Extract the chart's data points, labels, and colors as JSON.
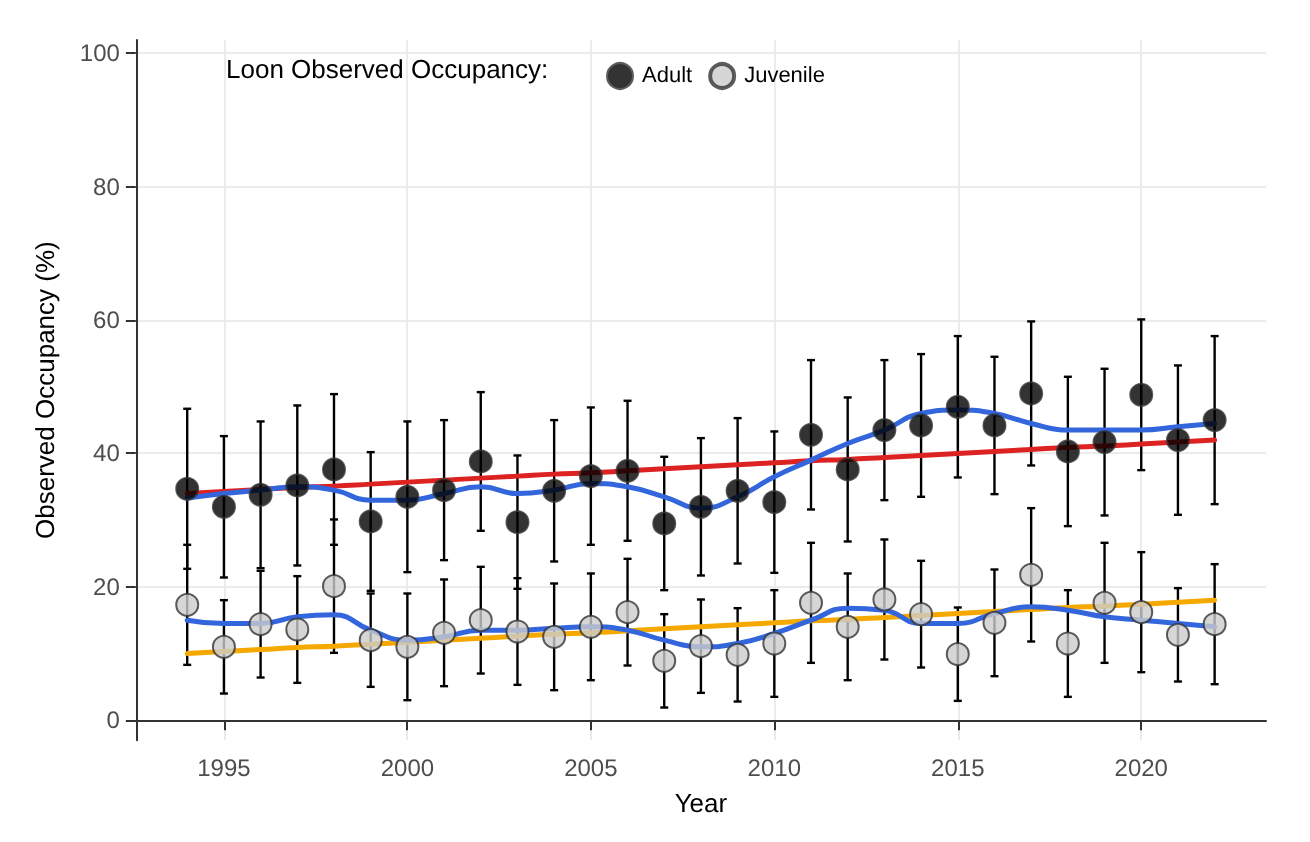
{
  "chart_data": {
    "type": "scatter",
    "xlabel": "Year",
    "ylabel": "Observed Occupancy (%)",
    "legend_title": "Loon Observed Occupancy:",
    "legend": "top left",
    "grid": true,
    "marker": "circle",
    "xlim": [
      1992.6,
      2023.4
    ],
    "xticks": [
      1995,
      2000,
      2005,
      2010,
      2015,
      2020
    ],
    "ylim": [
      -3,
      102
    ],
    "yticks": [
      0,
      20,
      40,
      60,
      80,
      100
    ],
    "x": [
      1994,
      1995,
      1996,
      1997,
      1998,
      1999,
      2000,
      2001,
      2002,
      2003,
      2004,
      2005,
      2006,
      2007,
      2008,
      2009,
      2010,
      2011,
      2012,
      2013,
      2014,
      2015,
      2016,
      2017,
      2018,
      2019,
      2020,
      2021,
      2022
    ],
    "series": [
      {
        "name": "Adult",
        "color": "#000000",
        "values": [
          34.7,
          32,
          33.8,
          35.2,
          37.6,
          29.8,
          33.5,
          34.5,
          38.8,
          29.7,
          34.4,
          36.6,
          37.4,
          29.5,
          32,
          34.4,
          32.7,
          42.8,
          37.6,
          43.5,
          44.2,
          47,
          44.2,
          49,
          40.3,
          41.7,
          48.8,
          42,
          45
        ],
        "errors": [
          12,
          10.6,
          11,
          12,
          11.3,
          10.4,
          11.3,
          10.5,
          10.4,
          10,
          10.6,
          10.3,
          10.5,
          10,
          10.3,
          10.9,
          10.6,
          11.2,
          10.8,
          10.5,
          10.7,
          10.6,
          10.3,
          10.8,
          11.2,
          11,
          11.3,
          11.2,
          12.6
        ]
      },
      {
        "name": "Juvenile",
        "color": "#cccccc",
        "values": [
          17.3,
          11,
          14.4,
          13.6,
          20.1,
          12,
          11,
          13.1,
          15,
          13.3,
          12.5,
          14,
          16.2,
          8.9,
          11.1,
          9.8,
          11.5,
          17.6,
          14,
          18.1,
          15.9,
          9.9,
          14.6,
          21.8,
          11.5,
          17.6,
          16.2,
          12.8,
          14.4
        ],
        "errors": [
          9,
          7,
          8,
          8,
          10,
          7,
          8,
          8,
          8,
          8,
          8,
          8,
          8,
          7,
          7,
          7,
          8,
          9,
          8,
          9,
          8,
          7,
          8,
          10,
          8,
          9,
          9,
          7,
          9
        ]
      },
      {
        "type": "line",
        "marker": "none",
        "color": "#dd2222",
        "values": [
          34,
          34.3,
          34.6,
          34.9,
          35.1,
          35.4,
          35.7,
          36,
          36.3,
          36.6,
          36.9,
          37.1,
          37.4,
          37.7,
          38,
          38.3,
          38.6,
          38.9,
          39.1,
          39.4,
          39.7,
          40,
          40.3,
          40.6,
          40.9,
          41.1,
          41.4,
          41.7,
          42
        ]
      },
      {
        "type": "line",
        "marker": "none",
        "color": "#f5a800",
        "values": [
          10,
          10.3,
          10.6,
          10.9,
          11.1,
          11.4,
          11.7,
          12,
          12.3,
          12.6,
          12.9,
          13.1,
          13.4,
          13.7,
          14,
          14.3,
          14.6,
          14.9,
          15.1,
          15.4,
          15.7,
          16,
          16.3,
          16.6,
          16.9,
          17.1,
          17.4,
          17.7,
          18
        ]
      },
      {
        "type": "line",
        "marker": "none",
        "color": "#3366dd",
        "values": [
          33.3,
          34,
          34.5,
          35,
          34.5,
          33,
          33,
          34,
          35,
          34,
          34.5,
          35.5,
          35,
          33.5,
          31.8,
          33.5,
          36.5,
          39,
          41.5,
          43.5,
          46,
          46.5,
          46,
          44.5,
          43.5,
          43.5,
          43.5,
          44,
          44.5
        ]
      },
      {
        "type": "line",
        "marker": "none",
        "color": "#3366dd",
        "values": [
          15,
          14.5,
          14.5,
          15.5,
          15.8,
          13.5,
          12,
          12.5,
          13.5,
          13.5,
          13.8,
          14,
          13.5,
          12,
          11,
          11.5,
          13,
          15,
          16.8,
          16.5,
          14.5,
          14.5,
          16,
          17,
          16.5,
          15.5,
          15,
          14.5,
          14
        ]
      }
    ]
  }
}
